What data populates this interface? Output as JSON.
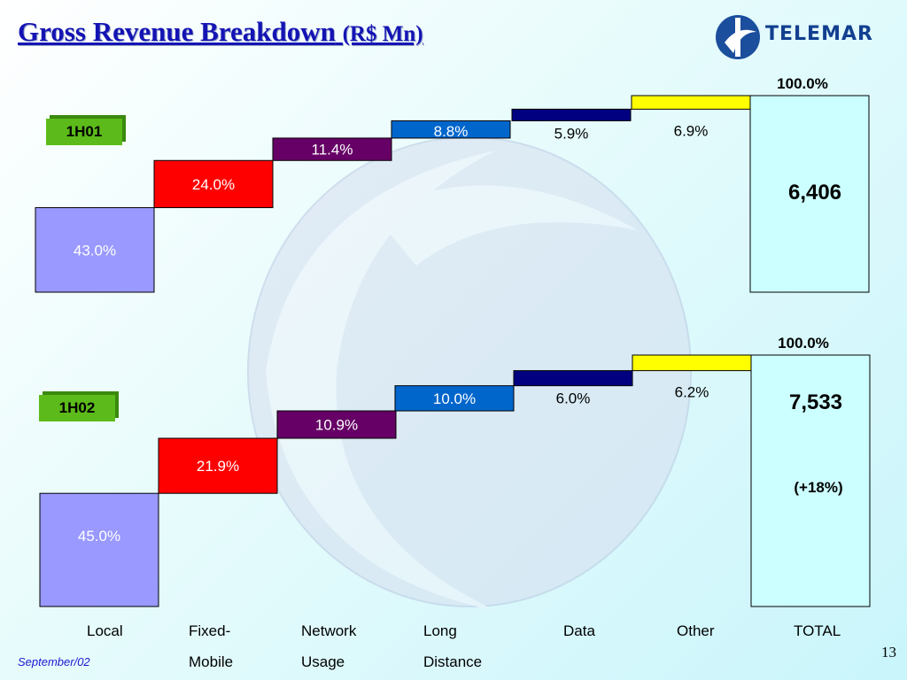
{
  "title": "Gross  Revenue Breakdown",
  "title_unit": "(R$ Mn)",
  "logo_text": "TELEMAR",
  "footer": "September/02",
  "page_number": "13",
  "chart_data": [
    {
      "type": "bar",
      "subtype": "waterfall",
      "period": "1H01",
      "categories": [
        "Local",
        "Fixed-Mobile",
        "Network Usage",
        "Long Distance",
        "Data",
        "Other",
        "TOTAL"
      ],
      "values": [
        43.0,
        24.0,
        11.4,
        8.8,
        5.9,
        6.9,
        100.0
      ],
      "value_labels": [
        "43.0%",
        "24.0%",
        "11.4%",
        "8.8%",
        "5.9%",
        "6.9%",
        "100.0%"
      ],
      "total_value": "6,406",
      "growth": ""
    },
    {
      "type": "bar",
      "subtype": "waterfall",
      "period": "1H02",
      "categories": [
        "Local",
        "Fixed-Mobile",
        "Network Usage",
        "Long Distance",
        "Data",
        "Other",
        "TOTAL"
      ],
      "values": [
        45.0,
        21.9,
        10.9,
        10.0,
        6.0,
        6.2,
        100.0
      ],
      "value_labels": [
        "45.0%",
        "21.9%",
        "10.9%",
        "10.0%",
        "6.0%",
        "6.2%",
        "100.0%"
      ],
      "total_value": "7,533",
      "growth": "(+18%)"
    }
  ],
  "x_labels": [
    [
      "Local",
      ""
    ],
    [
      "Fixed-",
      "Mobile"
    ],
    [
      "Network",
      "Usage"
    ],
    [
      "Long",
      "Distance"
    ],
    [
      "Data",
      ""
    ],
    [
      "Other",
      ""
    ],
    [
      "TOTAL",
      ""
    ]
  ],
  "colors": [
    "#9999ff",
    "#ff0000",
    "#660066",
    "#0066cc",
    "#000080",
    "#ffff00",
    "#ccffff"
  ]
}
